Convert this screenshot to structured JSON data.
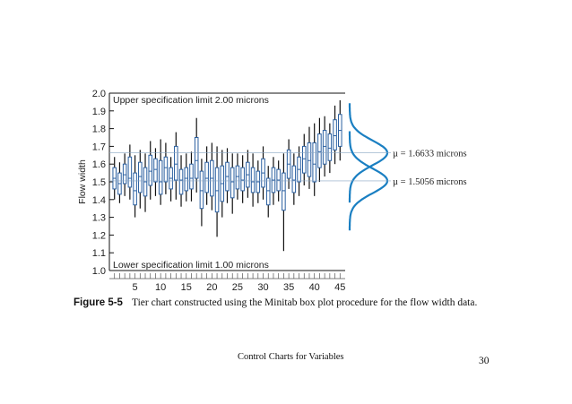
{
  "chart_data": {
    "type": "box",
    "ylabel": "Flow width",
    "ylim": [
      1.0,
      2.0
    ],
    "yticks": [
      "1.0",
      "1.1",
      "1.2",
      "1.3",
      "1.4",
      "1.5",
      "1.6",
      "1.7",
      "1.8",
      "1.9",
      "2.0"
    ],
    "xticks": [
      "5",
      "10",
      "15",
      "20",
      "25",
      "30",
      "35",
      "40",
      "45"
    ],
    "x_subgroups": 45,
    "spec_limits": {
      "upper": {
        "value": 2.0,
        "label": "Upper specification limit 2.00 microns"
      },
      "lower": {
        "value": 1.0,
        "label": "Lower specification limit 1.00 microns"
      }
    },
    "subgroups": [
      {
        "x": 1,
        "min": 1.4,
        "q1": 1.46,
        "median": 1.52,
        "q3": 1.58,
        "max": 1.64
      },
      {
        "x": 2,
        "min": 1.38,
        "q1": 1.43,
        "median": 1.49,
        "q3": 1.55,
        "max": 1.61
      },
      {
        "x": 3,
        "min": 1.42,
        "q1": 1.49,
        "median": 1.54,
        "q3": 1.6,
        "max": 1.66
      },
      {
        "x": 4,
        "min": 1.4,
        "q1": 1.47,
        "median": 1.52,
        "q3": 1.64,
        "max": 1.71
      },
      {
        "x": 5,
        "min": 1.3,
        "q1": 1.37,
        "median": 1.45,
        "q3": 1.55,
        "max": 1.65
      },
      {
        "x": 6,
        "min": 1.35,
        "q1": 1.44,
        "median": 1.53,
        "q3": 1.61,
        "max": 1.68
      },
      {
        "x": 7,
        "min": 1.33,
        "q1": 1.42,
        "median": 1.5,
        "q3": 1.58,
        "max": 1.66
      },
      {
        "x": 8,
        "min": 1.4,
        "q1": 1.48,
        "median": 1.56,
        "q3": 1.65,
        "max": 1.73
      },
      {
        "x": 9,
        "min": 1.42,
        "q1": 1.5,
        "median": 1.57,
        "q3": 1.63,
        "max": 1.69
      },
      {
        "x": 10,
        "min": 1.37,
        "q1": 1.43,
        "median": 1.5,
        "q3": 1.62,
        "max": 1.74
      },
      {
        "x": 11,
        "min": 1.43,
        "q1": 1.5,
        "median": 1.58,
        "q3": 1.64,
        "max": 1.72
      },
      {
        "x": 12,
        "min": 1.39,
        "q1": 1.46,
        "median": 1.52,
        "q3": 1.58,
        "max": 1.64
      },
      {
        "x": 13,
        "min": 1.4,
        "q1": 1.51,
        "median": 1.6,
        "q3": 1.7,
        "max": 1.78
      },
      {
        "x": 14,
        "min": 1.36,
        "q1": 1.43,
        "median": 1.51,
        "q3": 1.57,
        "max": 1.65
      },
      {
        "x": 15,
        "min": 1.39,
        "q1": 1.45,
        "median": 1.52,
        "q3": 1.58,
        "max": 1.66
      },
      {
        "x": 16,
        "min": 1.39,
        "q1": 1.46,
        "median": 1.52,
        "q3": 1.6,
        "max": 1.67
      },
      {
        "x": 17,
        "min": 1.44,
        "q1": 1.52,
        "median": 1.62,
        "q3": 1.75,
        "max": 1.86
      },
      {
        "x": 18,
        "min": 1.25,
        "q1": 1.35,
        "median": 1.45,
        "q3": 1.56,
        "max": 1.63
      },
      {
        "x": 19,
        "min": 1.37,
        "q1": 1.44,
        "median": 1.52,
        "q3": 1.61,
        "max": 1.7
      },
      {
        "x": 20,
        "min": 1.34,
        "q1": 1.42,
        "median": 1.52,
        "q3": 1.62,
        "max": 1.72
      },
      {
        "x": 21,
        "min": 1.19,
        "q1": 1.33,
        "median": 1.45,
        "q3": 1.58,
        "max": 1.7
      },
      {
        "x": 22,
        "min": 1.3,
        "q1": 1.39,
        "median": 1.49,
        "q3": 1.59,
        "max": 1.68
      },
      {
        "x": 23,
        "min": 1.38,
        "q1": 1.45,
        "median": 1.53,
        "q3": 1.61,
        "max": 1.69
      },
      {
        "x": 24,
        "min": 1.32,
        "q1": 1.41,
        "median": 1.5,
        "q3": 1.58,
        "max": 1.66
      },
      {
        "x": 25,
        "min": 1.4,
        "q1": 1.46,
        "median": 1.53,
        "q3": 1.59,
        "max": 1.66
      },
      {
        "x": 26,
        "min": 1.38,
        "q1": 1.45,
        "median": 1.51,
        "q3": 1.58,
        "max": 1.65
      },
      {
        "x": 27,
        "min": 1.41,
        "q1": 1.47,
        "median": 1.54,
        "q3": 1.61,
        "max": 1.68
      },
      {
        "x": 28,
        "min": 1.36,
        "q1": 1.44,
        "median": 1.5,
        "q3": 1.58,
        "max": 1.66
      },
      {
        "x": 29,
        "min": 1.38,
        "q1": 1.44,
        "median": 1.5,
        "q3": 1.56,
        "max": 1.62
      },
      {
        "x": 30,
        "min": 1.4,
        "q1": 1.47,
        "median": 1.55,
        "q3": 1.63,
        "max": 1.7
      },
      {
        "x": 31,
        "min": 1.3,
        "q1": 1.37,
        "median": 1.45,
        "q3": 1.52,
        "max": 1.59
      },
      {
        "x": 32,
        "min": 1.37,
        "q1": 1.44,
        "median": 1.51,
        "q3": 1.58,
        "max": 1.64
      },
      {
        "x": 33,
        "min": 1.39,
        "q1": 1.45,
        "median": 1.51,
        "q3": 1.57,
        "max": 1.62
      },
      {
        "x": 34,
        "min": 1.11,
        "q1": 1.34,
        "median": 1.45,
        "q3": 1.55,
        "max": 1.66
      },
      {
        "x": 35,
        "min": 1.46,
        "q1": 1.52,
        "median": 1.6,
        "q3": 1.68,
        "max": 1.74
      },
      {
        "x": 36,
        "min": 1.37,
        "q1": 1.44,
        "median": 1.51,
        "q3": 1.59,
        "max": 1.66
      },
      {
        "x": 37,
        "min": 1.42,
        "q1": 1.5,
        "median": 1.57,
        "q3": 1.64,
        "max": 1.7
      },
      {
        "x": 38,
        "min": 1.48,
        "q1": 1.55,
        "median": 1.63,
        "q3": 1.7,
        "max": 1.77
      },
      {
        "x": 39,
        "min": 1.46,
        "q1": 1.53,
        "median": 1.62,
        "q3": 1.72,
        "max": 1.81
      },
      {
        "x": 40,
        "min": 1.42,
        "q1": 1.5,
        "median": 1.6,
        "q3": 1.72,
        "max": 1.83
      },
      {
        "x": 41,
        "min": 1.5,
        "q1": 1.58,
        "median": 1.67,
        "q3": 1.77,
        "max": 1.86
      },
      {
        "x": 42,
        "min": 1.53,
        "q1": 1.6,
        "median": 1.7,
        "q3": 1.79,
        "max": 1.87
      },
      {
        "x": 43,
        "min": 1.55,
        "q1": 1.62,
        "median": 1.69,
        "q3": 1.77,
        "max": 1.83
      },
      {
        "x": 44,
        "min": 1.6,
        "q1": 1.68,
        "median": 1.76,
        "q3": 1.85,
        "max": 1.93
      },
      {
        "x": 45,
        "min": 1.62,
        "q1": 1.7,
        "median": 1.79,
        "q3": 1.88,
        "max": 1.96
      }
    ],
    "distributions": [
      {
        "mean": 1.6633,
        "sd": 0.07,
        "label": "µ = 1.6633 microns"
      },
      {
        "mean": 1.5056,
        "sd": 0.07,
        "label": "µ = 1.5056 microns"
      }
    ],
    "colors": {
      "box": "#2a5fa0",
      "whisker": "#111111",
      "curve": "#1a7fc2",
      "spec": "#111111"
    }
  },
  "caption": {
    "figure_label": "Figure 5-5",
    "text": "Tier chart constructed using the Minitab box plot procedure for the flow width data."
  },
  "footer": {
    "title": "Control Charts for Variables",
    "page_number": "30"
  }
}
